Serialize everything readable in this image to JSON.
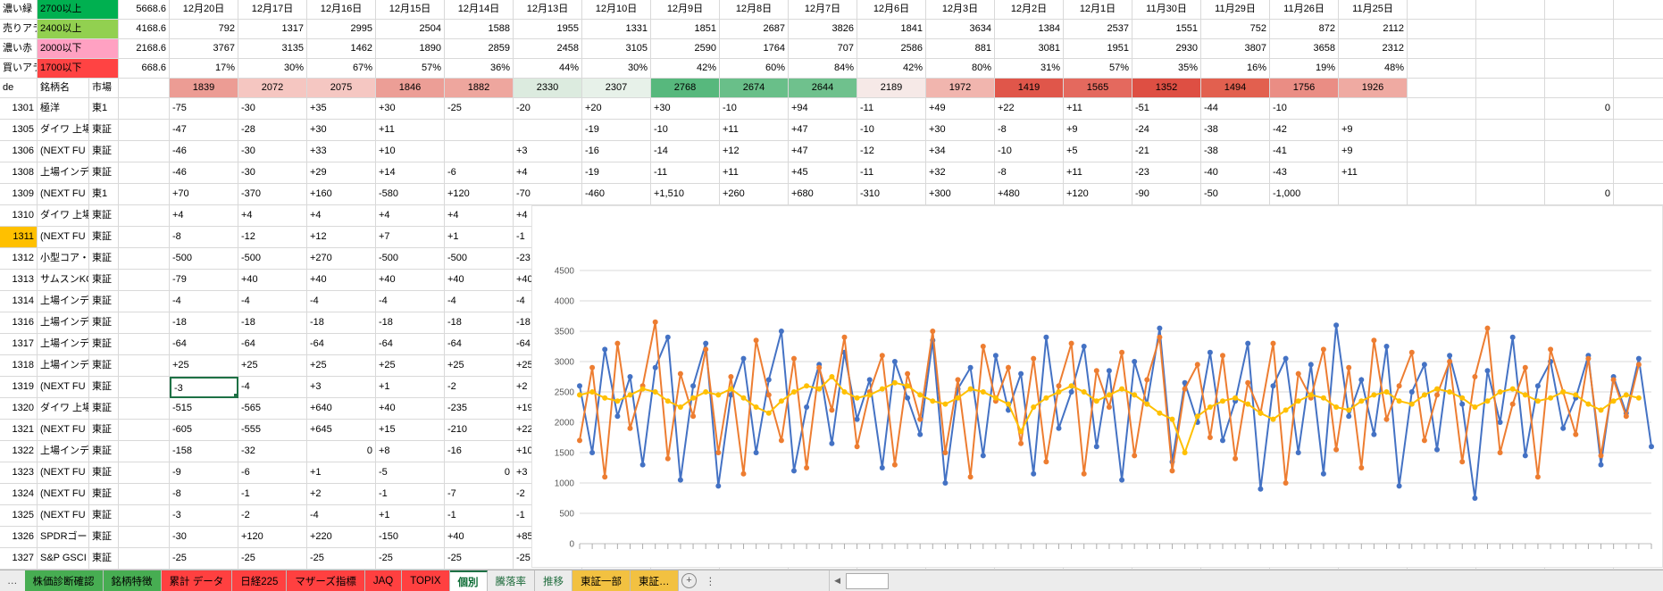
{
  "left_panel": {
    "alert_rows": [
      {
        "label": "濃い緑",
        "threshold": "2700以上",
        "threshold_color": "#00b050",
        "value": "5668.6"
      },
      {
        "label": "売りアラー",
        "threshold": "2400以上",
        "threshold_color": "#92d050",
        "value": "4168.6"
      },
      {
        "label": "濃い赤",
        "threshold": "2000以下",
        "threshold_color": "#ffa1c2",
        "value": "2168.6"
      },
      {
        "label": "買いアラー",
        "threshold": "1700以下",
        "threshold_color": "#ff4343",
        "value": "668.6"
      }
    ],
    "table_header": {
      "code": "de",
      "name": "銘柄名",
      "market": "市場"
    }
  },
  "dates": [
    "12月20日",
    "12月17日",
    "12月16日",
    "12月15日",
    "12月14日",
    "12月13日",
    "12月10日",
    "12月9日",
    "12月8日",
    "12月7日",
    "12月6日",
    "12月3日",
    "12月2日",
    "12月1日",
    "11月30日",
    "11月29日",
    "11月26日",
    "11月25日"
  ],
  "header_rows": {
    "series_a": [
      "792",
      "1317",
      "2995",
      "2504",
      "1588",
      "1955",
      "1331",
      "1851",
      "2687",
      "3826",
      "1841",
      "3634",
      "1384",
      "2537",
      "1551",
      "752",
      "872",
      "2112"
    ],
    "series_b": [
      "3767",
      "3135",
      "1462",
      "1890",
      "2859",
      "2458",
      "3105",
      "2590",
      "1764",
      "707",
      "2586",
      "881",
      "3081",
      "1951",
      "2930",
      "3807",
      "3658",
      "2312"
    ],
    "percent": [
      "17%",
      "30%",
      "67%",
      "57%",
      "36%",
      "44%",
      "30%",
      "42%",
      "60%",
      "84%",
      "42%",
      "80%",
      "31%",
      "57%",
      "35%",
      "16%",
      "19%",
      "48%"
    ],
    "index_row": [
      {
        "v": "1839",
        "bg": "#ec9c94"
      },
      {
        "v": "2072",
        "bg": "#f5c6c1"
      },
      {
        "v": "2075",
        "bg": "#f5c7c2"
      },
      {
        "v": "1846",
        "bg": "#ec9e96"
      },
      {
        "v": "1882",
        "bg": "#eea69e"
      },
      {
        "v": "2330",
        "bg": "#dcebdf"
      },
      {
        "v": "2307",
        "bg": "#e7f1e9"
      },
      {
        "v": "2768",
        "bg": "#57b87d"
      },
      {
        "v": "2674",
        "bg": "#69bf89"
      },
      {
        "v": "2644",
        "bg": "#6fc18d"
      },
      {
        "v": "2189",
        "bg": "#f6e9e7"
      },
      {
        "v": "1972",
        "bg": "#f1b5ae"
      },
      {
        "v": "1419",
        "bg": "#e0564a"
      },
      {
        "v": "1565",
        "bg": "#e4695e"
      },
      {
        "v": "1352",
        "bg": "#de4f43"
      },
      {
        "v": "1494",
        "bg": "#e2604f"
      },
      {
        "v": "1756",
        "bg": "#ea8d84"
      },
      {
        "v": "1926",
        "bg": "#efaaa2"
      }
    ]
  },
  "stocks": [
    {
      "code": "1301",
      "name": "極洋",
      "market": "東1",
      "values": [
        "-75",
        "-30",
        "+35",
        "+30",
        "-25",
        "-20",
        "+20",
        "+30",
        "-10",
        "+94",
        "-11",
        "+49",
        "+22",
        "+11",
        "-51",
        "-44",
        "-10",
        ""
      ],
      "far_value": "0"
    },
    {
      "code": "1305",
      "name": "ダイワ 上場",
      "market": "東証",
      "values": [
        "-47",
        "-28",
        "+30",
        "+11",
        "",
        "",
        "-19",
        "-10",
        "+11",
        "+47",
        "-10",
        "+30",
        "-8",
        "+9",
        "-24",
        "-38",
        "-42",
        "+9"
      ]
    },
    {
      "code": "1306",
      "name": "(NEXT FU",
      "market": "東証",
      "values": [
        "-46",
        "-30",
        "+33",
        "+10",
        "",
        "+3",
        "-16",
        "-14",
        "+12",
        "+47",
        "-12",
        "+34",
        "-10",
        "+5",
        "-21",
        "-38",
        "-41",
        "+9"
      ]
    },
    {
      "code": "1308",
      "name": "上場インデ",
      "market": "東証",
      "values": [
        "-46",
        "-30",
        "+29",
        "+14",
        "-6",
        "+4",
        "-19",
        "-11",
        "+11",
        "+45",
        "-11",
        "+32",
        "-8",
        "+11",
        "-23",
        "-40",
        "-43",
        "+11"
      ]
    },
    {
      "code": "1309",
      "name": "(NEXT FU",
      "market": "東1",
      "values": [
        "+70",
        "-370",
        "+160",
        "-580",
        "+120",
        "-70",
        "-460",
        "+1,510",
        "+260",
        "+680",
        "-310",
        "+300",
        "+480",
        "+120",
        "-90",
        "-50",
        "-1,000",
        ""
      ],
      "far_value": "0"
    },
    {
      "code": "1310",
      "name": "ダイワ 上場",
      "market": "東証",
      "values": [
        "+4",
        "+4",
        "+4",
        "+4",
        "+4",
        "+4"
      ]
    },
    {
      "code": "1311",
      "name": "(NEXT FU",
      "market": "東証",
      "values": [
        "-8",
        "-12",
        "+12",
        "+7",
        "+1",
        "-1"
      ],
      "code_bg": "#ffc000"
    },
    {
      "code": "1312",
      "name": "小型コア・",
      "market": "東証",
      "values": [
        "-500",
        "-500",
        "+270",
        "-500",
        "-500",
        "-23"
      ]
    },
    {
      "code": "1313",
      "name": "サムスンKO",
      "market": "東証",
      "values": [
        "-79",
        "+40",
        "+40",
        "+40",
        "+40",
        "+40"
      ]
    },
    {
      "code": "1314",
      "name": "上場インデ",
      "market": "東証",
      "values": [
        "-4",
        "-4",
        "-4",
        "-4",
        "-4",
        "-4"
      ]
    },
    {
      "code": "1316",
      "name": "上場インデ",
      "market": "東証",
      "values": [
        "-18",
        "-18",
        "-18",
        "-18",
        "-18",
        "-18"
      ]
    },
    {
      "code": "1317",
      "name": "上場インデ",
      "market": "東証",
      "values": [
        "-64",
        "-64",
        "-64",
        "-64",
        "-64",
        "-64"
      ]
    },
    {
      "code": "1318",
      "name": "上場インデ",
      "market": "東証",
      "values": [
        "+25",
        "+25",
        "+25",
        "+25",
        "+25",
        "+25"
      ]
    },
    {
      "code": "1319",
      "name": "(NEXT FU",
      "market": "東証",
      "values": [
        "-3",
        "-4",
        "+3",
        "+1",
        "-2",
        "+2"
      ],
      "selected_col": 0
    },
    {
      "code": "1320",
      "name": "ダイワ 上場",
      "market": "東証",
      "values": [
        "-515",
        "-565",
        "+640",
        "+40",
        "-235",
        "+19"
      ]
    },
    {
      "code": "1321",
      "name": "(NEXT FU",
      "market": "東証",
      "values": [
        "-605",
        "-555",
        "+645",
        "+15",
        "-210",
        "+22"
      ]
    },
    {
      "code": "1322",
      "name": "上場インデ",
      "market": "東証",
      "values": [
        "-158",
        "-32",
        "0",
        "+8",
        "-16",
        "+10"
      ]
    },
    {
      "code": "1323",
      "name": "(NEXT FU",
      "market": "東証",
      "values": [
        "-9",
        "-6",
        "+1",
        "-5",
        "0",
        "+3"
      ]
    },
    {
      "code": "1324",
      "name": "(NEXT FU",
      "market": "東証",
      "values": [
        "-8",
        "-1",
        "+2",
        "-1",
        "-7",
        "-2"
      ]
    },
    {
      "code": "1325",
      "name": "(NEXT FU",
      "market": "東証",
      "values": [
        "-3",
        "-2",
        "-4",
        "+1",
        "-1",
        "-1"
      ]
    },
    {
      "code": "1326",
      "name": "SPDRゴー",
      "market": "東証",
      "values": [
        "-30",
        "+120",
        "+220",
        "-150",
        "+40",
        "+85"
      ]
    },
    {
      "code": "1327",
      "name": "S&P GSCI",
      "market": "東証",
      "values": [
        "-25",
        "-25",
        "-25",
        "-25",
        "-25",
        "-25"
      ]
    }
  ],
  "chart": {
    "type": "line",
    "ymax": 4500,
    "y_ticks": [
      "4500",
      "4000",
      "3500",
      "3000",
      "2500",
      "2000",
      "1500",
      "1000",
      "500",
      "0"
    ],
    "grid_color": "#d9d9d9",
    "series": [
      {
        "name": "series-blue",
        "color": "#4472c4",
        "values": [
          2600,
          1500,
          3200,
          2100,
          2750,
          1300,
          2900,
          3400,
          1050,
          2600,
          3300,
          950,
          2450,
          3050,
          1500,
          2700,
          3500,
          1200,
          2250,
          2950,
          1650,
          3150,
          2050,
          2700,
          1250,
          3000,
          2400,
          1800,
          3350,
          1000,
          2550,
          2900,
          1450,
          3100,
          2200,
          2800,
          1150,
          3400,
          1900,
          2500,
          3250,
          1600,
          2850,
          1050,
          3000,
          2300,
          3550,
          1350,
          2650,
          2000,
          3150,
          1700,
          2350,
          3300,
          900,
          2600,
          3050,
          1500,
          2950,
          1150,
          3600,
          2100,
          2700,
          1800,
          3250,
          950,
          2500,
          2950,
          1550,
          3100,
          2300,
          750,
          2850,
          2000,
          3400,
          1450,
          2600,
          3000,
          1900,
          2400,
          3100,
          1300,
          2750,
          2150,
          3050,
          1600
        ]
      },
      {
        "name": "series-orange",
        "color": "#ed7d31",
        "values": [
          1700,
          2900,
          1100,
          3300,
          1900,
          2600,
          3650,
          1400,
          2800,
          2100,
          3200,
          1500,
          2750,
          1150,
          3350,
          2450,
          1700,
          3050,
          1250,
          2900,
          2200,
          3400,
          1600,
          2500,
          3100,
          1300,
          2800,
          2050,
          3500,
          1500,
          2700,
          1100,
          3250,
          2350,
          2900,
          1650,
          3050,
          1350,
          2600,
          3300,
          1150,
          2850,
          2250,
          3150,
          1450,
          2700,
          3400,
          1200,
          2550,
          2950,
          1750,
          3100,
          1400,
          2650,
          2150,
          3300,
          1000,
          2800,
          2400,
          3200,
          1550,
          2900,
          1250,
          3350,
          2050,
          2600,
          3150,
          1700,
          2450,
          3000,
          1350,
          2750,
          3550,
          1500,
          2300,
          2900,
          1100,
          3200,
          2500,
          1800,
          3050,
          1450,
          2700,
          2100,
          2950
        ]
      },
      {
        "name": "series-yellow",
        "color": "#ffc000",
        "values": [
          2450,
          2500,
          2400,
          2350,
          2450,
          2550,
          2500,
          2350,
          2250,
          2400,
          2500,
          2450,
          2550,
          2400,
          2250,
          2150,
          2350,
          2500,
          2600,
          2550,
          2750,
          2500,
          2400,
          2450,
          2550,
          2650,
          2600,
          2450,
          2350,
          2300,
          2400,
          2550,
          2500,
          2400,
          2300,
          1850,
          2250,
          2400,
          2500,
          2600,
          2500,
          2350,
          2450,
          2550,
          2450,
          2300,
          2150,
          2050,
          1500,
          2100,
          2250,
          2350,
          2400,
          2300,
          2150,
          2050,
          2200,
          2350,
          2450,
          2400,
          2250,
          2200,
          2350,
          2450,
          2500,
          2350,
          2300,
          2450,
          2550,
          2500,
          2400,
          2250,
          2350,
          2500,
          2550,
          2450,
          2350,
          2400,
          2500,
          2450,
          2300,
          2200,
          2350,
          2450,
          2400
        ]
      }
    ]
  },
  "sheet_tabs": {
    "overflow_indicator": "…",
    "tabs": [
      {
        "label": "株価診断確認",
        "bg": "#47ad52",
        "fg": "#000000"
      },
      {
        "label": "銘柄特徴",
        "bg": "#47ad52",
        "fg": "#000000"
      },
      {
        "label": "累計 データ",
        "bg": "#ff4040",
        "fg": "#000000"
      },
      {
        "label": "日経225",
        "bg": "#ff4040",
        "fg": "#000000"
      },
      {
        "label": "マザーズ指標",
        "bg": "#ff4040",
        "fg": "#000000"
      },
      {
        "label": "JAQ",
        "bg": "#ff4040",
        "fg": "#000000"
      },
      {
        "label": "TOPIX",
        "bg": "#ff4040",
        "fg": "#000000"
      },
      {
        "label": "個別",
        "bg": "#ffffff",
        "fg": "#0a6b33",
        "active": true
      },
      {
        "label": "騰落率",
        "bg": "#ececec",
        "fg": "#1e6b3c"
      },
      {
        "label": "推移",
        "bg": "#ececec",
        "fg": "#1e6b3c"
      },
      {
        "label": "東証一部",
        "bg": "#f2c141",
        "fg": "#000000"
      },
      {
        "label": "東証…",
        "bg": "#f2c141",
        "fg": "#000000"
      }
    ],
    "add_sheet": "+",
    "tab_options": "⋮",
    "scroll_left": "◄"
  }
}
